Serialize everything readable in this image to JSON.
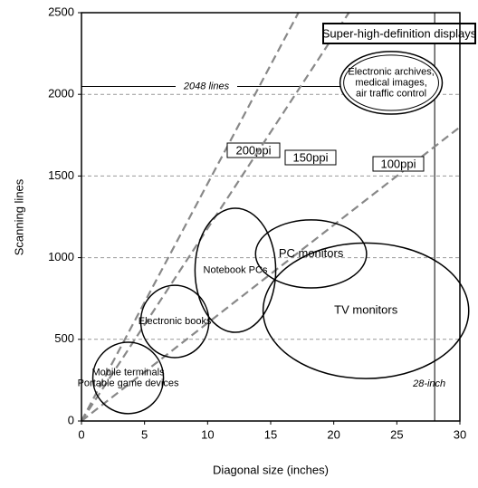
{
  "chart_data": {
    "type": "line",
    "xlabel": "Diagonal size (inches)",
    "ylabel": "Scanning lines",
    "xlim": [
      0,
      30
    ],
    "xticks": [
      0,
      5,
      10,
      15,
      20,
      25,
      30
    ],
    "ylim": [
      0,
      2500
    ],
    "yticks": [
      0,
      500,
      1000,
      1500,
      2000,
      2500
    ],
    "grid": true,
    "series": [
      {
        "name": "200ppi",
        "color": "#888888",
        "x": [
          0,
          17.2
        ],
        "values": [
          0,
          2500
        ]
      },
      {
        "name": "150ppi",
        "color": "#888888",
        "x": [
          0,
          21.2
        ],
        "values": [
          0,
          2500
        ]
      },
      {
        "name": "100ppi",
        "color": "#888888",
        "x": [
          0,
          30
        ],
        "values": [
          0,
          1800
        ]
      }
    ],
    "reference_lines": [
      {
        "axis": "y",
        "value": 2048,
        "label": "2048 lines"
      },
      {
        "axis": "x",
        "value": 28,
        "label": "28-inch"
      }
    ],
    "regions": [
      {
        "label": [
          "Mobile terminals",
          "Portable game devices"
        ],
        "xlim": [
          0.9,
          6.5
        ],
        "ylim": [
          45,
          482
        ]
      },
      {
        "label": [
          "Electronic books"
        ],
        "xlim": [
          4.7,
          10.1
        ],
        "ylim": [
          388,
          831
        ]
      },
      {
        "label": [
          "Notebook PCs"
        ],
        "xlim": [
          9.0,
          15.4
        ],
        "ylim": [
          543,
          1303
        ]
      },
      {
        "label": [
          "PC monitors"
        ],
        "xlim": [
          13.8,
          22.6
        ],
        "ylim": [
          815,
          1231
        ]
      },
      {
        "label": [
          "TV monitors"
        ],
        "xlim": [
          14.4,
          30.7
        ],
        "ylim": [
          260,
          1090
        ]
      },
      {
        "label": [
          "Electronic archives,",
          "medical images,",
          "air traffic control"
        ],
        "xlim": [
          20.5,
          28.6
        ],
        "ylim": [
          1879,
          2262
        ]
      }
    ],
    "annotation": "Super-high-definition displays"
  }
}
